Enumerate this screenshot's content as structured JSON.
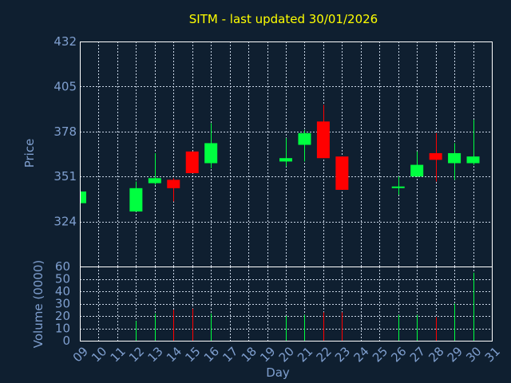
{
  "chart_data": {
    "type": "candlestick",
    "title": "SITM - last updated 30/01/2026",
    "xlabel": "Day",
    "price_ylabel": "Price",
    "volume_ylabel": "Volume (0000)",
    "x_ticks": [
      "09",
      "10",
      "11",
      "12",
      "13",
      "14",
      "15",
      "16",
      "17",
      "18",
      "19",
      "20",
      "21",
      "22",
      "23",
      "24",
      "25",
      "26",
      "27",
      "28",
      "29",
      "30",
      "31"
    ],
    "price_yticks": [
      "432",
      "405",
      "378",
      "351",
      "324"
    ],
    "price_ylim": [
      297,
      432
    ],
    "volume_yticks": [
      "60",
      "50",
      "40",
      "30",
      "20",
      "10",
      "0"
    ],
    "volume_ylim": [
      0,
      60
    ],
    "grid": true,
    "up_color": "#00ff40",
    "down_color": "#ff0000",
    "candles": [
      {
        "day": "09",
        "open": 335,
        "high": 342,
        "low": 335,
        "close": 342,
        "volume": 0
      },
      {
        "day": "12",
        "open": 330,
        "high": 348,
        "low": 330,
        "close": 344,
        "volume": 16
      },
      {
        "day": "13",
        "open": 347,
        "high": 365,
        "low": 346,
        "close": 350,
        "volume": 22
      },
      {
        "day": "14",
        "open": 349,
        "high": 350,
        "low": 336,
        "close": 344,
        "volume": 25
      },
      {
        "day": "15",
        "open": 366,
        "high": 366,
        "low": 353,
        "close": 353,
        "volume": 26
      },
      {
        "day": "16",
        "open": 359,
        "high": 383,
        "low": 356,
        "close": 371,
        "volume": 22
      },
      {
        "day": "20",
        "open": 360,
        "high": 374,
        "low": 357,
        "close": 362,
        "volume": 20
      },
      {
        "day": "21",
        "open": 370,
        "high": 379,
        "low": 360,
        "close": 377,
        "volume": 21
      },
      {
        "day": "22",
        "open": 384,
        "high": 394,
        "low": 362,
        "close": 362,
        "volume": 23
      },
      {
        "day": "23",
        "open": 363,
        "high": 363,
        "low": 343,
        "close": 343,
        "volume": 23
      },
      {
        "day": "26",
        "open": 345,
        "high": 351,
        "low": 340,
        "close": 345,
        "volume": 21
      },
      {
        "day": "27",
        "open": 351,
        "high": 366,
        "low": 351,
        "close": 358,
        "volume": 21
      },
      {
        "day": "28",
        "open": 365,
        "high": 377,
        "low": 348,
        "close": 361,
        "volume": 19
      },
      {
        "day": "29",
        "open": 359,
        "high": 371,
        "low": 349,
        "close": 365,
        "volume": 30
      },
      {
        "day": "30",
        "open": 359,
        "high": 385,
        "low": 358,
        "close": 363,
        "volume": 55
      }
    ]
  }
}
